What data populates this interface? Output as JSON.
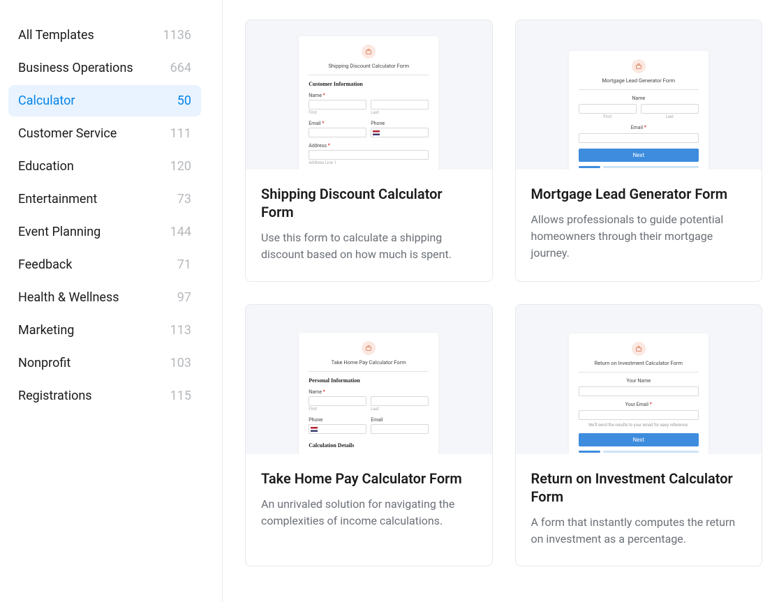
{
  "colors": {
    "accent": "#0284e9",
    "active_bg": "#e9f3ff",
    "muted_text": "#b5b8bc",
    "body_text": "#1b1b1b",
    "desc_text": "#6b7077",
    "border": "#e6e8eb",
    "preview_bg": "#f4f6f9",
    "button_blue": "#3e8cde",
    "progress_light": "#cfe3f8",
    "icon_bg": "#fbe8e1",
    "icon_stroke": "#d9744f"
  },
  "sidebar": {
    "items": [
      {
        "label": "All Templates",
        "count": "1136",
        "active": false
      },
      {
        "label": "Business Operations",
        "count": "664",
        "active": false
      },
      {
        "label": "Calculator",
        "count": "50",
        "active": true
      },
      {
        "label": "Customer Service",
        "count": "111",
        "active": false
      },
      {
        "label": "Education",
        "count": "120",
        "active": false
      },
      {
        "label": "Entertainment",
        "count": "73",
        "active": false
      },
      {
        "label": "Event Planning",
        "count": "144",
        "active": false
      },
      {
        "label": "Feedback",
        "count": "71",
        "active": false
      },
      {
        "label": "Health & Wellness",
        "count": "97",
        "active": false
      },
      {
        "label": "Marketing",
        "count": "113",
        "active": false
      },
      {
        "label": "Nonprofit",
        "count": "103",
        "active": false
      },
      {
        "label": "Registrations",
        "count": "115",
        "active": false
      }
    ]
  },
  "cards": [
    {
      "title": "Shipping Discount Calculator Form",
      "desc": "Use this form to calculate a shipping discount based on how much is spent.",
      "preview": {
        "type": "form_detailed",
        "form_title": "Shipping Discount Calculator Form",
        "section1": "Customer Information",
        "labels": {
          "name": "Name",
          "first": "First",
          "last": "Last",
          "email": "Email",
          "phone": "Phone",
          "address": "Address",
          "address_line": "Address Line 1"
        }
      }
    },
    {
      "title": "Mortgage Lead Generator Form",
      "desc": "Allows professionals to guide potential homeowners through their mortgage journey.",
      "preview": {
        "type": "form_step",
        "form_title": "Mortgage Lead Generator Form",
        "labels": {
          "name": "Name",
          "first": "First",
          "last": "Last",
          "email": "Email",
          "button": "Next"
        }
      }
    },
    {
      "title": "Take Home Pay Calculator Form",
      "desc": "An unrivaled solution for navigating the complexities of income calculations.",
      "preview": {
        "type": "form_detailed2",
        "form_title": "Take Home Pay Calculator Form",
        "section1": "Personal Information",
        "section2": "Calculation Details",
        "labels": {
          "name": "Name",
          "first": "First",
          "last": "Last",
          "phone": "Phone",
          "email": "Email"
        }
      }
    },
    {
      "title": "Return on Investment Calculator Form",
      "desc": "A form that instantly computes the return on investment as a percentage.",
      "preview": {
        "type": "form_step2",
        "form_title": "Return on Investment Calculator Form",
        "labels": {
          "your_name": "Your Name",
          "your_email": "Your Email",
          "note": "We'll send the results to your email for easy reference.",
          "button": "Next"
        }
      }
    }
  ]
}
